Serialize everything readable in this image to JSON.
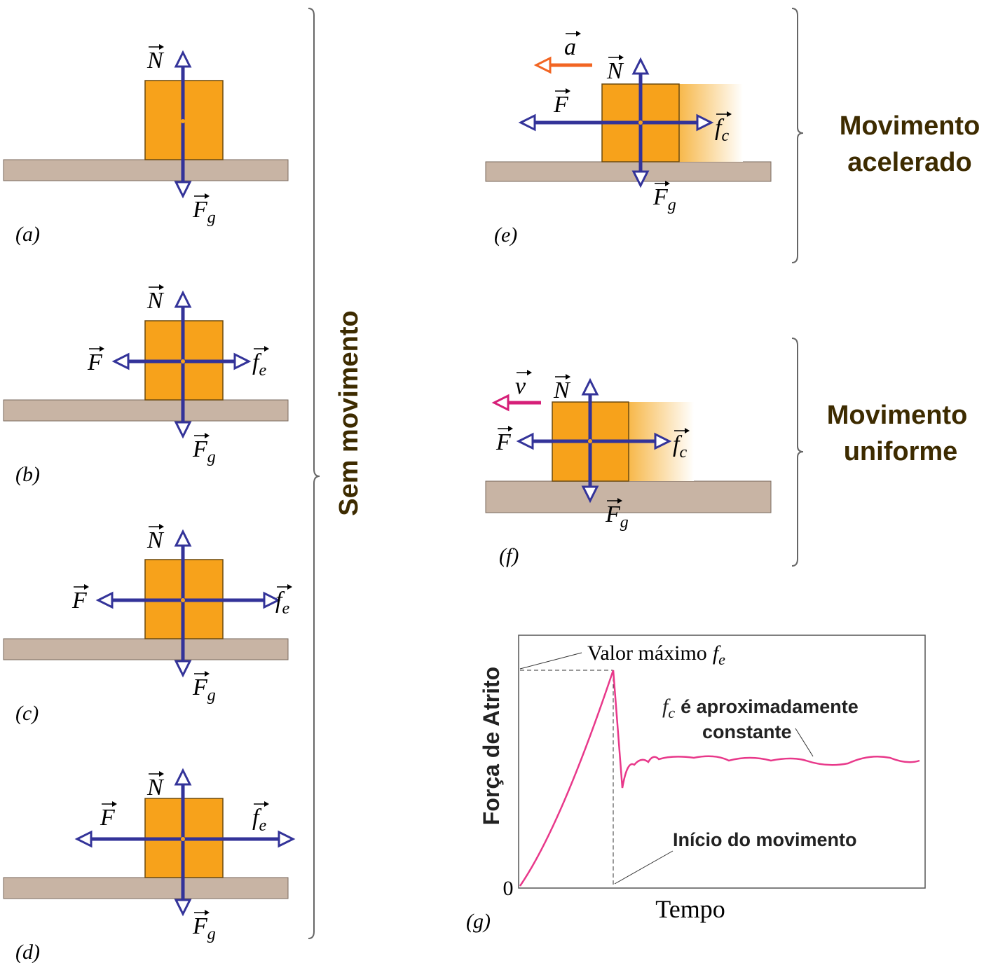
{
  "panels": [
    {
      "label": "(a)",
      "forces": {
        "normal": {
          "symbol": "N"
        },
        "weight": {
          "symbol": "F",
          "sub": "g"
        }
      }
    },
    {
      "label": "(b)",
      "forces": {
        "normal": {
          "symbol": "N"
        },
        "applied": {
          "symbol": "F"
        },
        "friction": {
          "symbol": "f",
          "sub": "e"
        },
        "weight": {
          "symbol": "F",
          "sub": "g"
        }
      }
    },
    {
      "label": "(c)",
      "forces": {
        "normal": {
          "symbol": "N"
        },
        "applied": {
          "symbol": "F"
        },
        "friction": {
          "symbol": "f",
          "sub": "e"
        },
        "weight": {
          "symbol": "F",
          "sub": "g"
        }
      }
    },
    {
      "label": "(d)",
      "forces": {
        "normal": {
          "symbol": "N"
        },
        "applied": {
          "symbol": "F"
        },
        "friction": {
          "symbol": "f",
          "sub": "e"
        },
        "weight": {
          "symbol": "F",
          "sub": "g"
        }
      }
    },
    {
      "label": "(e)",
      "forces": {
        "motion": {
          "symbol": "a"
        },
        "normal": {
          "symbol": "N"
        },
        "applied": {
          "symbol": "F"
        },
        "friction": {
          "symbol": "f",
          "sub": "c"
        },
        "weight": {
          "symbol": "F",
          "sub": "g"
        }
      }
    },
    {
      "label": "(f)",
      "forces": {
        "motion": {
          "symbol": "v"
        },
        "normal": {
          "symbol": "N"
        },
        "applied": {
          "symbol": "F"
        },
        "friction": {
          "symbol": "f",
          "sub": "c"
        },
        "weight": {
          "symbol": "F",
          "sub": "g"
        }
      }
    }
  ],
  "braces": {
    "static": "Sem movimento",
    "accelerated": [
      "Movimento",
      "acelerado"
    ],
    "uniform": [
      "Movimento",
      "uniforme"
    ]
  },
  "graph": {
    "label": "(g)",
    "y_label": "Força de Atrito",
    "x_label": "Tempo",
    "origin": "0",
    "peak": {
      "text": "Valor máximo",
      "symbol": "f",
      "sub": "e"
    },
    "kinetic": {
      "symbol": "f",
      "sub": "c",
      "lines": [
        "é aproximadamente",
        "constante"
      ]
    },
    "start": "Início do movimento"
  }
}
